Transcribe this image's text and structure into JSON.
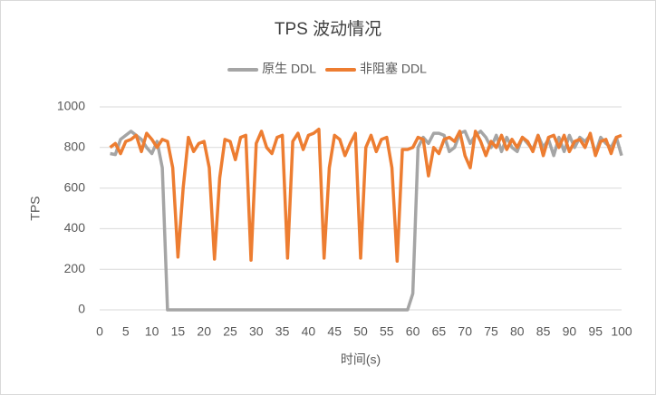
{
  "chart_data": {
    "type": "line",
    "title": "TPS 波动情况",
    "x_label": "时间(s)",
    "y_label": "TPS",
    "x": [
      2,
      3,
      4,
      5,
      6,
      7,
      8,
      9,
      10,
      11,
      12,
      13,
      14,
      15,
      16,
      17,
      18,
      19,
      20,
      21,
      22,
      23,
      24,
      25,
      26,
      27,
      28,
      29,
      30,
      31,
      32,
      33,
      34,
      35,
      36,
      37,
      38,
      39,
      40,
      41,
      42,
      43,
      44,
      45,
      46,
      47,
      48,
      49,
      50,
      51,
      52,
      53,
      54,
      55,
      56,
      57,
      58,
      59,
      60,
      61,
      62,
      63,
      64,
      65,
      66,
      67,
      68,
      69,
      70,
      71,
      72,
      73,
      74,
      75,
      76,
      77,
      78,
      79,
      80,
      81,
      82,
      83,
      84,
      85,
      86,
      87,
      88,
      89,
      90,
      91,
      92,
      93,
      94,
      95,
      96,
      97,
      98,
      99,
      100
    ],
    "series": [
      {
        "name": "原生 DDL",
        "color": "#a5a5a5",
        "values": [
          770,
          765,
          840,
          860,
          880,
          860,
          840,
          800,
          770,
          830,
          700,
          0,
          0,
          0,
          0,
          0,
          0,
          0,
          0,
          0,
          0,
          0,
          0,
          0,
          0,
          0,
          0,
          0,
          0,
          0,
          0,
          0,
          0,
          0,
          0,
          0,
          0,
          0,
          0,
          0,
          0,
          0,
          0,
          0,
          0,
          0,
          0,
          0,
          0,
          0,
          0,
          0,
          0,
          0,
          0,
          0,
          0,
          0,
          80,
          800,
          850,
          820,
          870,
          870,
          860,
          780,
          800,
          870,
          880,
          820,
          860,
          880,
          850,
          800,
          860,
          780,
          850,
          800,
          780,
          850,
          820,
          790,
          860,
          800,
          840,
          760,
          850,
          780,
          860,
          800,
          850,
          830,
          860,
          770,
          850,
          820,
          800,
          850,
          760
        ]
      },
      {
        "name": "非阻塞 DDL",
        "color": "#ed7d31",
        "values": [
          800,
          820,
          770,
          830,
          840,
          860,
          780,
          870,
          840,
          800,
          840,
          830,
          700,
          260,
          600,
          850,
          780,
          820,
          830,
          700,
          250,
          650,
          840,
          830,
          740,
          850,
          860,
          245,
          820,
          880,
          800,
          770,
          850,
          860,
          255,
          830,
          870,
          790,
          860,
          870,
          890,
          255,
          700,
          860,
          840,
          760,
          820,
          870,
          255,
          800,
          860,
          780,
          840,
          850,
          700,
          240,
          790,
          790,
          800,
          850,
          840,
          660,
          800,
          770,
          840,
          850,
          830,
          880,
          760,
          700,
          880,
          830,
          760,
          830,
          800,
          860,
          790,
          840,
          800,
          850,
          830,
          780,
          860,
          760,
          850,
          860,
          800,
          860,
          780,
          830,
          840,
          800,
          870,
          760,
          830,
          840,
          770,
          850,
          860
        ]
      }
    ],
    "xlim": [
      0,
      100
    ],
    "xticks": [
      0,
      5,
      10,
      15,
      20,
      25,
      30,
      35,
      40,
      45,
      50,
      55,
      60,
      65,
      70,
      75,
      80,
      85,
      90,
      95,
      100
    ],
    "ylim": [
      0,
      1000
    ],
    "yticks": [
      0,
      200,
      400,
      600,
      800,
      1000
    ],
    "grid": true,
    "legend": "top"
  }
}
